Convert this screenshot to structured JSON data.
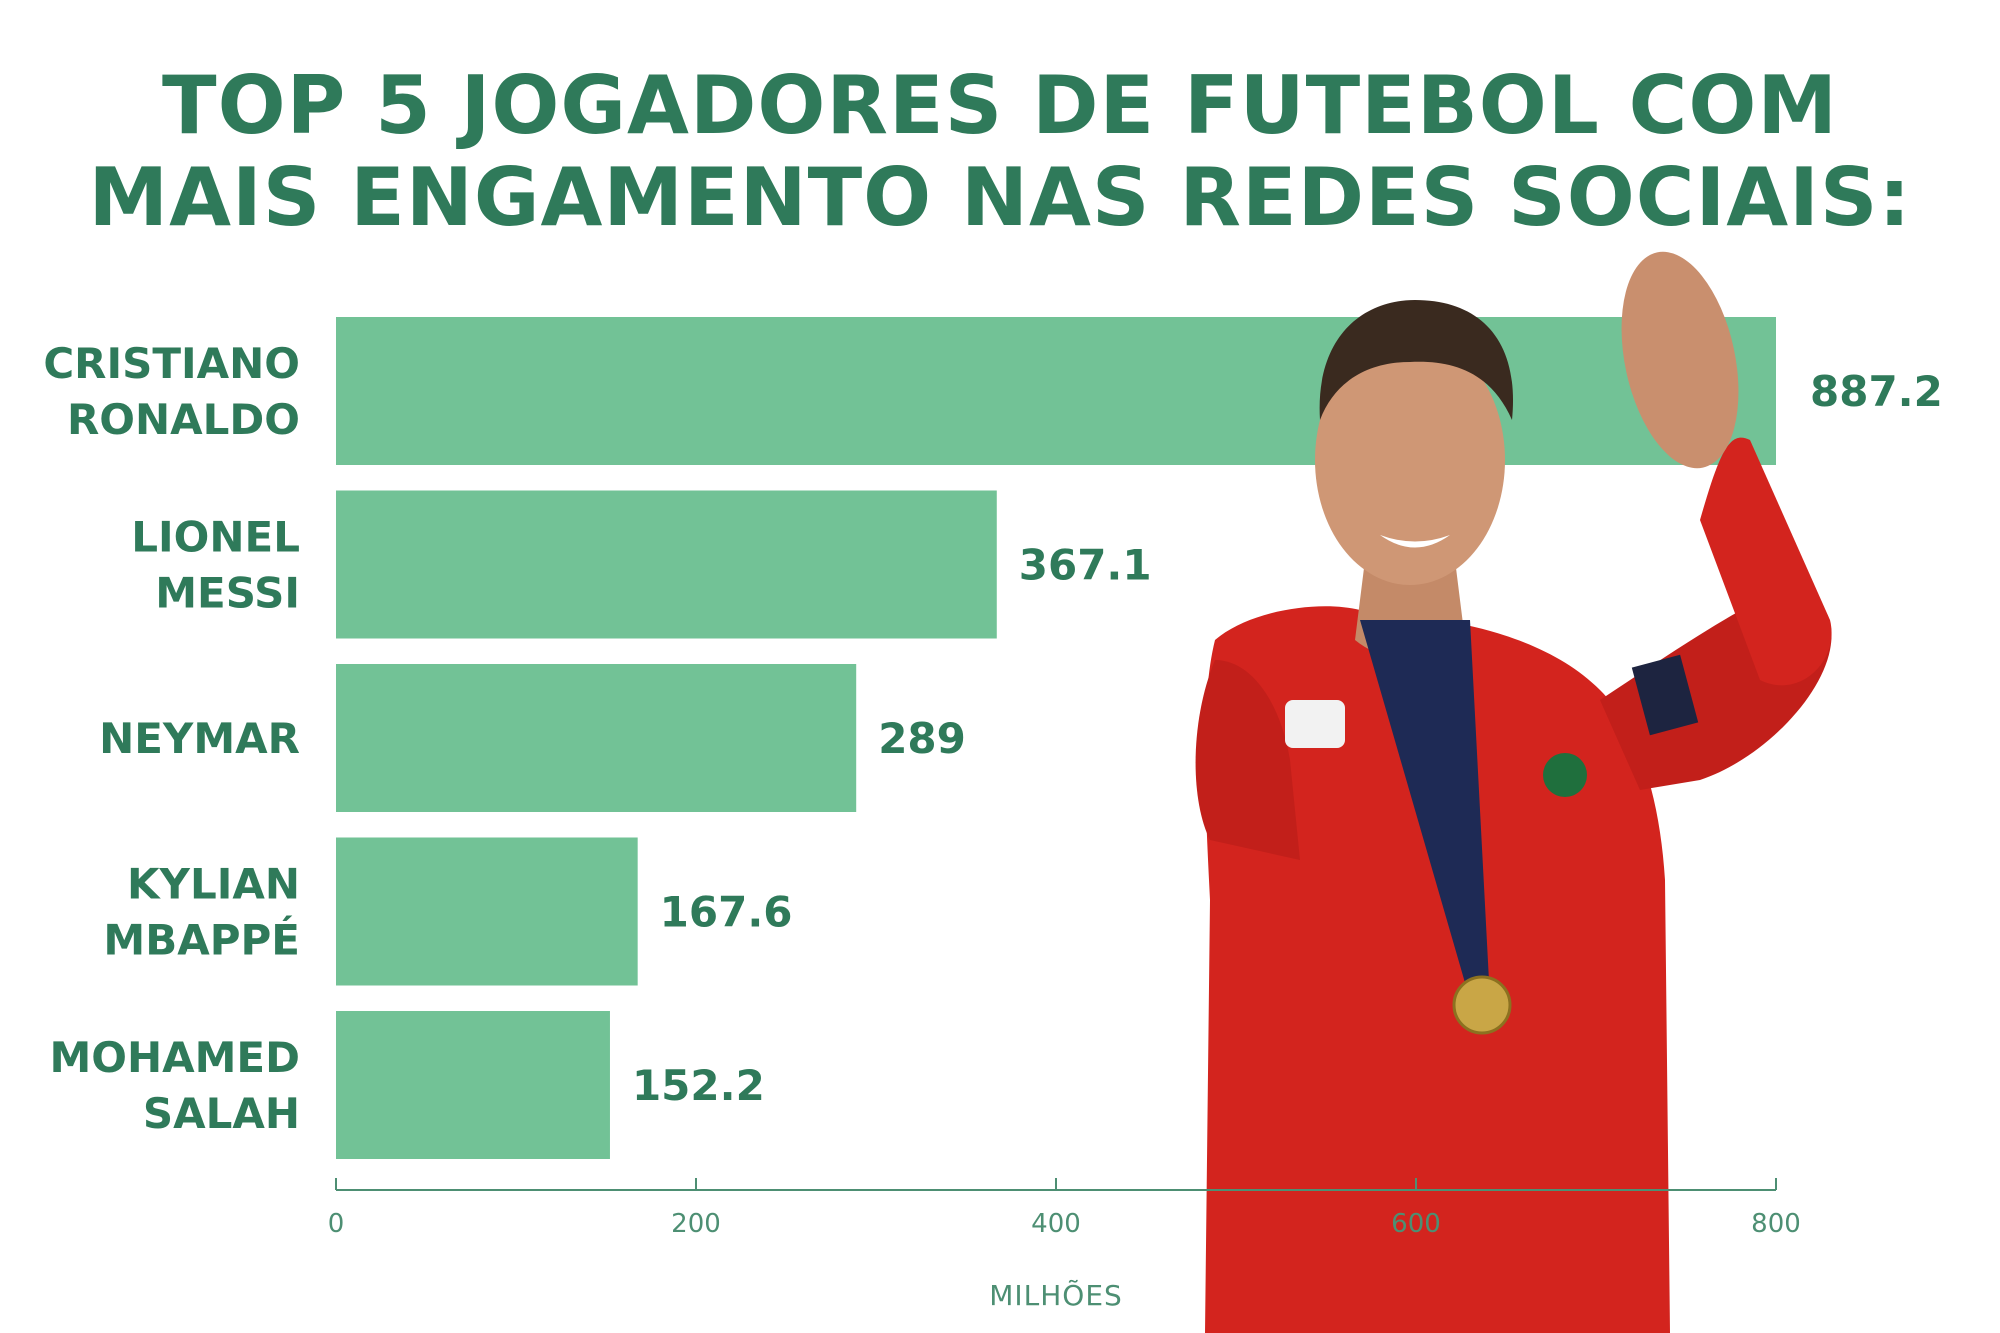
{
  "chart_data": {
    "type": "bar",
    "orientation": "horizontal",
    "title_lines": [
      "TOP 5 JOGADORES DE FUTEBOL COM",
      "MAIS ENGAMENTO NAS REDES SOCIAIS:"
    ],
    "categories": [
      [
        "CRISTIANO",
        "RONALDO"
      ],
      [
        "LIONEL",
        "MESSI"
      ],
      [
        "NEYMAR"
      ],
      [
        "KYLIAN",
        "MBAPPÉ"
      ],
      [
        "MOHAMED",
        "SALAH"
      ]
    ],
    "values": [
      887.2,
      367.1,
      289,
      167.6,
      152.2
    ],
    "value_labels": [
      "887.2",
      "367.1",
      "289",
      "167.6",
      "152.2"
    ],
    "xlabel": "MILHÕES",
    "xticks": [
      0,
      200,
      400,
      600,
      800
    ],
    "xlim": [
      0,
      800
    ],
    "grid": false
  },
  "colors": {
    "bar": "#72c296",
    "text": "#2f7a5a",
    "axis": "#4d8f73",
    "jersey": "#d3241e"
  }
}
